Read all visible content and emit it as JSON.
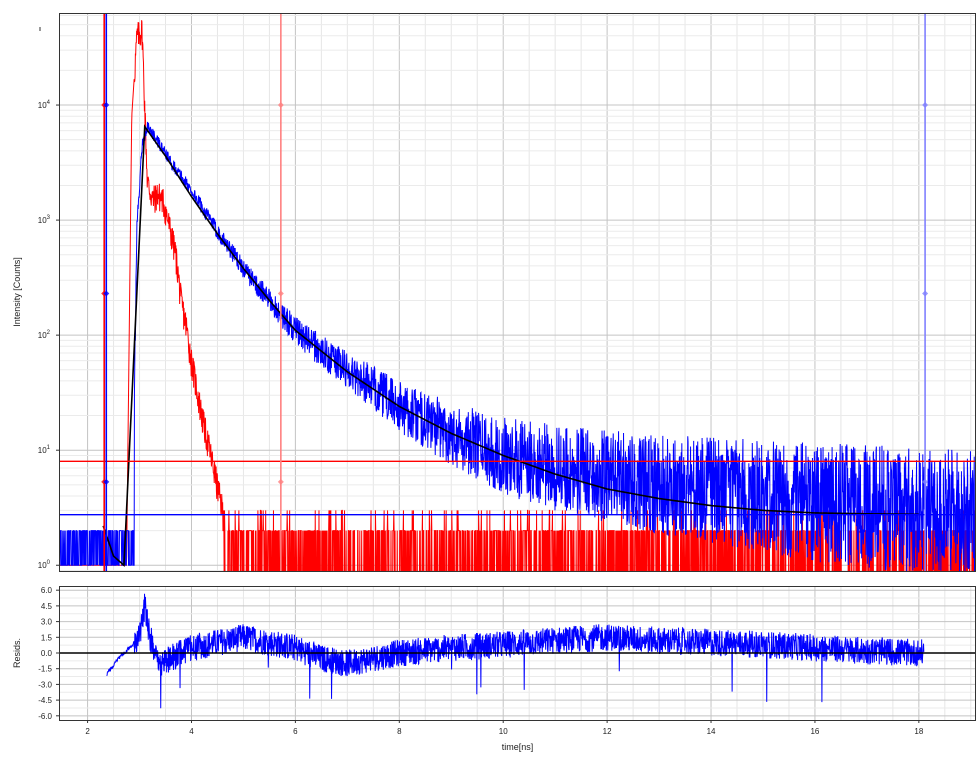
{
  "chart_data": [
    {
      "type": "line",
      "name": "decay",
      "xlabel": "",
      "ylabel": "Intensity [Counts]",
      "xlim": [
        1.45,
        19.1
      ],
      "ylim_log10": [
        -0.05,
        4.8
      ],
      "y_scale": "log",
      "grid": true,
      "y_ticks": [
        {
          "base": "10",
          "exp": "0",
          "value": 1
        },
        {
          "base": "10",
          "exp": "1",
          "value": 10
        },
        {
          "base": "10",
          "exp": "2",
          "value": 100
        },
        {
          "base": "10",
          "exp": "3",
          "value": 1000
        },
        {
          "base": "10",
          "exp": "4",
          "value": 10000
        }
      ],
      "series": [
        {
          "role": "decay-data",
          "color": "#0000ff",
          "x": [
            1.45,
            2.3,
            2.5,
            2.7,
            2.85,
            2.95,
            3.05,
            3.15,
            3.3,
            3.6,
            4.0,
            4.5,
            5.0,
            5.5,
            6.0,
            6.5,
            7.0,
            7.5,
            8.0,
            8.5,
            9.0,
            10.0,
            11.0,
            12.0,
            13.0,
            14.0,
            15.0,
            16.0,
            17.0,
            18.0,
            19.1
          ],
          "y": [
            1.5,
            1.5,
            1.5,
            1.0,
            1.0,
            900,
            4500,
            6500,
            5200,
            3200,
            1800,
            800,
            380,
            200,
            110,
            72,
            50,
            35,
            24,
            18,
            14,
            9,
            7,
            6,
            5,
            4.5,
            4,
            3.5,
            3.2,
            3,
            2.8
          ]
        },
        {
          "role": "irf",
          "color": "#ff0000",
          "x": [
            1.45,
            2.3,
            2.5,
            2.6,
            2.75,
            2.85,
            2.95,
            3.05,
            3.15,
            3.25,
            3.35,
            3.45,
            3.6,
            3.7,
            3.8,
            3.9,
            4.0,
            4.2,
            4.4,
            4.6,
            5.0,
            6.0,
            8.0,
            10.0,
            12.0,
            14.0,
            16.0,
            18.0,
            19.1
          ],
          "y": [
            1,
            1,
            1,
            1,
            1,
            8000,
            40000,
            45000,
            2200,
            1500,
            1700,
            1500,
            800,
            500,
            200,
            120,
            60,
            20,
            8,
            3,
            1.5,
            1.2,
            1.2,
            1.2,
            1.2,
            1.2,
            1.2,
            1.2,
            1.2
          ]
        },
        {
          "role": "fit",
          "color": "#000000",
          "x": [
            2.3,
            2.5,
            2.7,
            3.1,
            3.5,
            4.0,
            4.5,
            5.0,
            5.5,
            6.0,
            7.0,
            8.0,
            9.0,
            10.0,
            11.0,
            12.0,
            13.0,
            14.0,
            15.0,
            16.0,
            17.0,
            18.0
          ],
          "y": [
            2.2,
            1.2,
            1.0,
            6500,
            3600,
            1600,
            760,
            380,
            200,
            110,
            48,
            24,
            14,
            9,
            6.2,
            4.6,
            3.8,
            3.3,
            3.0,
            2.85,
            2.8,
            2.77
          ]
        }
      ],
      "hlines": [
        {
          "y": 8,
          "color": "#ff0000"
        },
        {
          "y": 2.75,
          "color": "#0000ff"
        }
      ],
      "vlines": [
        {
          "x": 2.32,
          "color": "#ff0000"
        },
        {
          "x": 2.36,
          "color": "#0000ff"
        },
        {
          "x": 5.72,
          "color": "#ff8080"
        },
        {
          "x": 18.12,
          "color": "#8080ff"
        }
      ]
    },
    {
      "type": "line",
      "name": "residuals",
      "xlabel": "time[ns]",
      "ylabel": "Resids.",
      "xlim": [
        1.45,
        19.1
      ],
      "ylim": [
        -6.4,
        6.4
      ],
      "grid": true,
      "x_ticks": [
        "2",
        "4",
        "6",
        "8",
        "10",
        "12",
        "14",
        "16",
        "18"
      ],
      "y_ticks": [
        "6.0",
        "4.5",
        "3.0",
        "1.5",
        "0.0",
        "-1.5",
        "-3.0",
        "-4.5",
        "-6.0"
      ],
      "series": [
        {
          "role": "residuals",
          "color": "#0000ff",
          "x": [
            2.37,
            2.6,
            2.8,
            3.0,
            3.1,
            3.2,
            3.4,
            3.6,
            4.0,
            4.5,
            5.0,
            5.5,
            6.0,
            6.5,
            7.0,
            7.5,
            8.0,
            9.0,
            10.0,
            11.0,
            12.0,
            13.0,
            14.0,
            15.0,
            16.0,
            17.0,
            18.1
          ],
          "y": [
            -2.0,
            -0.5,
            0.5,
            1.5,
            4.5,
            1.5,
            -1.0,
            -0.5,
            0.5,
            1.0,
            1.5,
            1.0,
            0.5,
            -0.5,
            -1.0,
            -0.5,
            0.0,
            0.5,
            0.8,
            1.2,
            1.5,
            1.2,
            1.0,
            0.8,
            0.5,
            0.2,
            0.0
          ]
        }
      ],
      "zero_line": {
        "y": 0,
        "color": "#000000"
      },
      "vlines": [
        {
          "x": 2.32,
          "color": "#ff0000"
        },
        {
          "x": 5.72,
          "color": "#ff8080"
        },
        {
          "x": 18.12,
          "color": "#8080ff"
        }
      ]
    }
  ]
}
